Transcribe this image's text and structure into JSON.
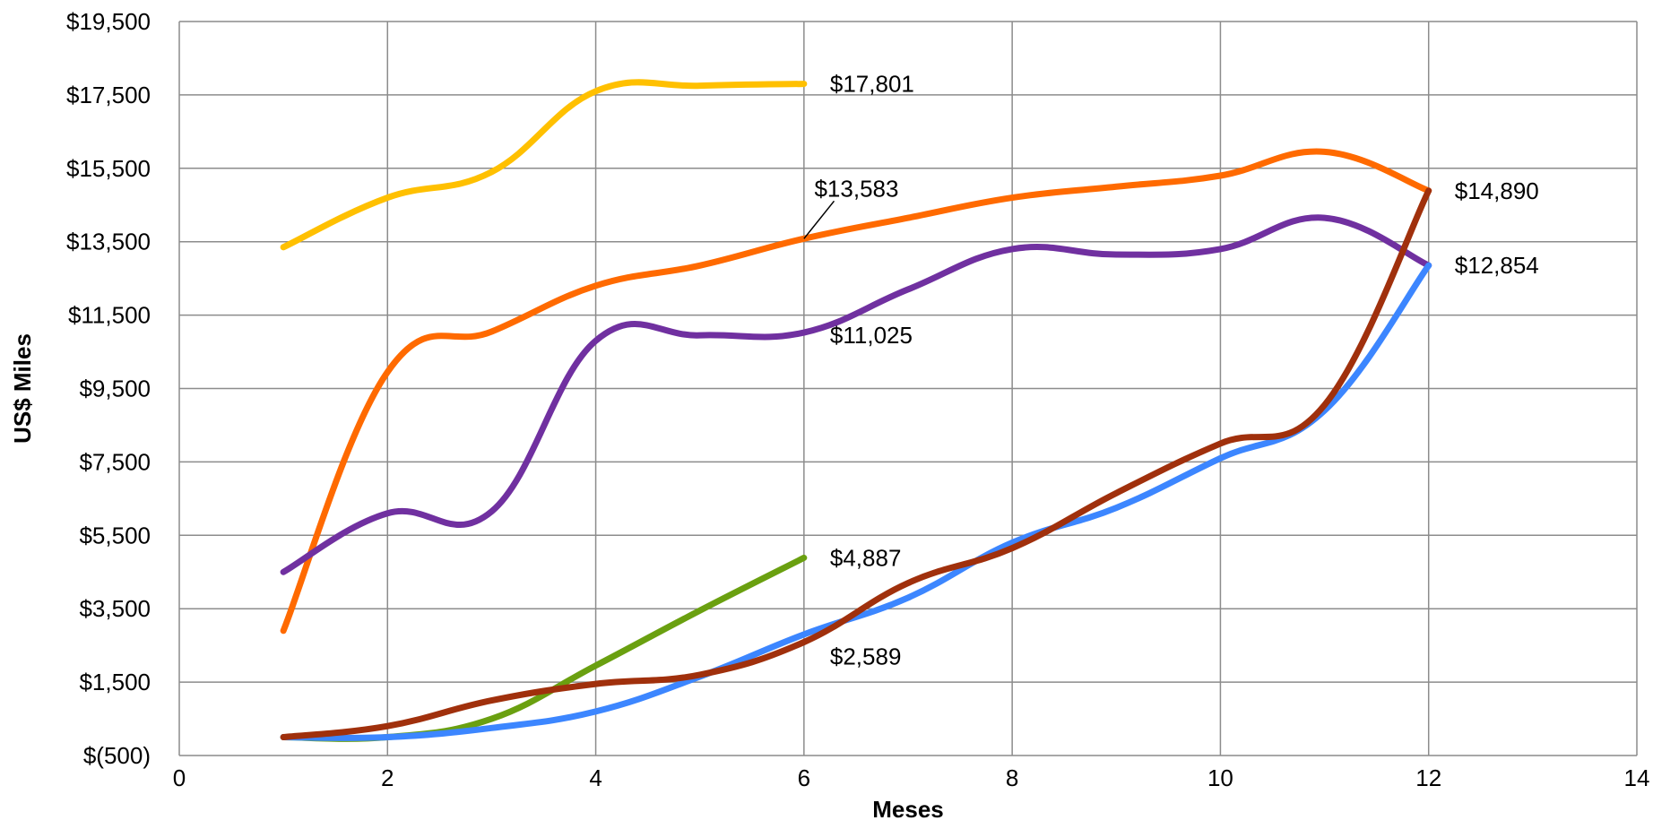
{
  "chart_data": {
    "type": "line",
    "title": "",
    "xlabel": "Meses",
    "ylabel": "US$ Miles",
    "xlim": [
      0,
      14
    ],
    "ylim": [
      -500,
      19500
    ],
    "x_ticks": [
      0,
      2,
      4,
      6,
      8,
      10,
      12,
      14
    ],
    "x_tick_labels": [
      "0",
      "2",
      "4",
      "6",
      "8",
      "10",
      "12",
      "14"
    ],
    "y_ticks": [
      -500,
      1500,
      3500,
      5500,
      7500,
      9500,
      11500,
      13500,
      15500,
      17500,
      19500
    ],
    "y_tick_labels": [
      "$(500)",
      "$1,500",
      "$3,500",
      "$5,500",
      "$7,500",
      "$9,500",
      "$11,500",
      "$13,500",
      "$15,500",
      "$17,500",
      "$19,500"
    ],
    "grid": true,
    "legend": "none",
    "series": [
      {
        "color": "#FFC000",
        "x": [
          1,
          2,
          3,
          4,
          5,
          6
        ],
        "y": [
          13350,
          14700,
          15400,
          17600,
          17750,
          17801
        ]
      },
      {
        "color": "#FF6A00",
        "x": [
          1,
          2,
          3,
          4,
          5,
          6,
          7,
          8,
          9,
          10,
          11,
          12
        ],
        "y": [
          2900,
          9950,
          11050,
          12300,
          12850,
          13583,
          14150,
          14700,
          15000,
          15300,
          15950,
          14890
        ]
      },
      {
        "color": "#7030A0",
        "x": [
          1,
          2,
          3,
          4,
          5,
          6,
          7,
          8,
          9,
          10,
          11,
          12
        ],
        "y": [
          4500,
          6100,
          6150,
          10800,
          10950,
          11025,
          12200,
          13300,
          13150,
          13300,
          14150,
          12854
        ]
      },
      {
        "color": "#6AA010",
        "x": [
          1,
          2,
          3,
          4,
          5,
          6
        ],
        "y": [
          0,
          0,
          500,
          1950,
          3450,
          4887
        ]
      },
      {
        "color": "#3C86FF",
        "x": [
          1,
          2,
          3,
          4,
          5,
          6,
          7,
          8,
          9,
          10,
          11,
          12
        ],
        "y": [
          0,
          0,
          250,
          700,
          1650,
          2800,
          3800,
          5300,
          6250,
          7600,
          8900,
          12854
        ]
      },
      {
        "color": "#A0300C",
        "x": [
          1,
          2,
          3,
          4,
          5,
          6,
          7,
          8,
          9,
          10,
          11,
          12
        ],
        "y": [
          0,
          300,
          1000,
          1450,
          1700,
          2589,
          4200,
          5150,
          6650,
          8000,
          9050,
          14890
        ]
      }
    ],
    "annotations": [
      {
        "text": "$17,801",
        "x": 6.25,
        "y": 17801
      },
      {
        "text": "$13,583",
        "x": 6.1,
        "y": 14950,
        "leader_to": {
          "x": 6,
          "y": 13583
        }
      },
      {
        "text": "$14,890",
        "x": 12.25,
        "y": 14890
      },
      {
        "text": "$12,854",
        "x": 12.25,
        "y": 12854
      },
      {
        "text": "$11,025",
        "x": 6.25,
        "y": 10950
      },
      {
        "text": "$4,887",
        "x": 6.25,
        "y": 4887
      },
      {
        "text": "$2,589",
        "x": 6.25,
        "y": 2200
      }
    ]
  }
}
